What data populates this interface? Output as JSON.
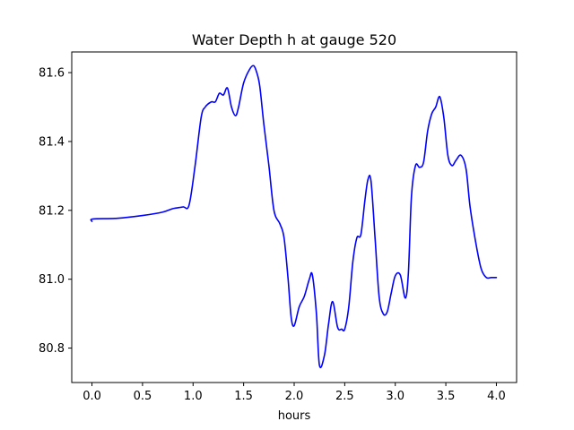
{
  "chart_data": {
    "type": "line",
    "title": "Water Depth h at gauge 520",
    "xlabel": "hours",
    "ylabel": "",
    "xlim": [
      -0.2,
      4.2
    ],
    "ylim": [
      80.7,
      81.66
    ],
    "xticks": [
      0.0,
      0.5,
      1.0,
      1.5,
      2.0,
      2.5,
      3.0,
      3.5,
      4.0
    ],
    "xtick_labels": [
      "0.0",
      "0.5",
      "1.0",
      "1.5",
      "2.0",
      "2.5",
      "3.0",
      "3.5",
      "4.0"
    ],
    "yticks": [
      80.8,
      81.0,
      81.2,
      81.4,
      81.6
    ],
    "ytick_labels": [
      "80.8",
      "81.0",
      "81.2",
      "81.4",
      "81.6"
    ],
    "grid": false,
    "series": [
      {
        "color": "#0000ff",
        "x": [
          0.0,
          0.01,
          0.25,
          0.5,
          0.7,
          0.8,
          0.9,
          0.96,
          1.02,
          1.08,
          1.12,
          1.18,
          1.22,
          1.26,
          1.3,
          1.34,
          1.38,
          1.42,
          1.45,
          1.5,
          1.56,
          1.6,
          1.63,
          1.66,
          1.7,
          1.75,
          1.8,
          1.86,
          1.9,
          1.94,
          1.97,
          2.0,
          2.05,
          2.1,
          2.15,
          2.18,
          2.22,
          2.25,
          2.3,
          2.34,
          2.38,
          2.43,
          2.47,
          2.5,
          2.54,
          2.58,
          2.62,
          2.66,
          2.7,
          2.73,
          2.76,
          2.8,
          2.84,
          2.88,
          2.92,
          2.96,
          3.0,
          3.05,
          3.1,
          3.13,
          3.16,
          3.2,
          3.24,
          3.28,
          3.32,
          3.36,
          3.4,
          3.44,
          3.48,
          3.52,
          3.56,
          3.6,
          3.65,
          3.7,
          3.74,
          3.8,
          3.85,
          3.9,
          3.95,
          4.0
        ],
        "y": [
          81.168,
          81.175,
          81.177,
          81.185,
          81.195,
          81.205,
          81.21,
          81.215,
          81.33,
          81.47,
          81.5,
          81.515,
          81.515,
          81.54,
          81.535,
          81.555,
          81.5,
          81.475,
          81.5,
          81.57,
          81.61,
          81.62,
          81.6,
          81.56,
          81.45,
          81.33,
          81.2,
          81.16,
          81.12,
          81.0,
          80.89,
          80.865,
          80.92,
          80.95,
          81.0,
          81.012,
          80.9,
          80.75,
          80.78,
          80.87,
          80.935,
          80.86,
          80.855,
          80.855,
          80.92,
          81.05,
          81.12,
          81.13,
          81.23,
          81.29,
          81.285,
          81.12,
          80.95,
          80.9,
          80.905,
          80.96,
          81.01,
          81.012,
          80.945,
          81.02,
          81.24,
          81.33,
          81.325,
          81.34,
          81.43,
          81.48,
          81.5,
          81.53,
          81.47,
          81.36,
          81.33,
          81.345,
          81.36,
          81.32,
          81.21,
          81.1,
          81.03,
          81.005,
          81.005,
          81.005
        ]
      }
    ]
  }
}
